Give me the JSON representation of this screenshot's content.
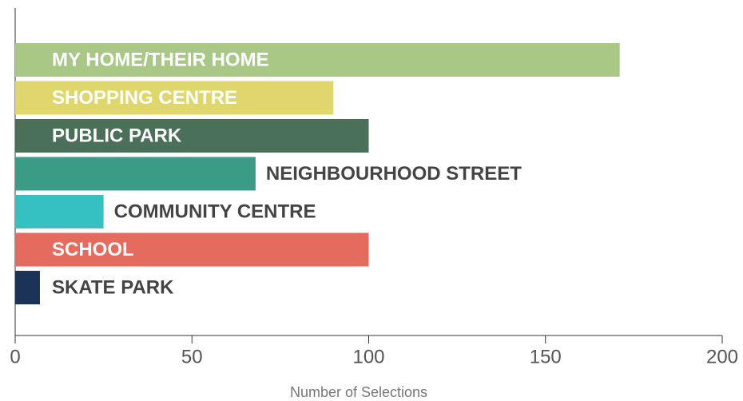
{
  "chart_data": {
    "type": "bar",
    "orientation": "horizontal",
    "categories": [
      "MY HOME/THEIR HOME",
      "SHOPPING CENTRE",
      "PUBLIC PARK",
      "NEIGHBOURHOOD STREET",
      "COMMUNITY CENTRE",
      "SCHOOL",
      "SKATE PARK"
    ],
    "values": [
      171,
      90,
      100,
      68,
      25,
      100,
      7
    ],
    "colors": [
      "#a9c785",
      "#dfd76e",
      "#4a705a",
      "#3b9c86",
      "#35c0c1",
      "#e46b5d",
      "#1c3358"
    ],
    "xlabel": "Number of Selections",
    "xlim": [
      0,
      200
    ],
    "xticks": [
      0,
      50,
      100,
      150,
      200
    ],
    "grid": false
  }
}
